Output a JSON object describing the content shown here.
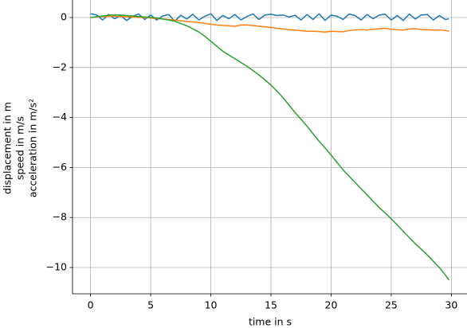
{
  "chart_data": {
    "type": "line",
    "xlabel": "time in s",
    "ylabel": [
      "displacement in m",
      "speed in m/s",
      "acceleration in m/s²"
    ],
    "x": [
      0,
      0.5,
      1,
      1.5,
      2,
      2.5,
      3,
      3.5,
      4,
      4.5,
      5,
      5.5,
      6,
      6.5,
      7,
      7.5,
      8,
      8.5,
      9,
      9.5,
      10,
      10.5,
      11,
      11.5,
      12,
      12.5,
      13,
      13.5,
      14,
      14.5,
      15,
      15.5,
      16,
      16.5,
      17,
      17.5,
      18,
      18.5,
      19,
      19.5,
      20,
      20.5,
      21,
      21.5,
      22,
      22.5,
      23,
      23.5,
      24,
      24.5,
      25,
      25.5,
      26,
      26.5,
      27,
      27.5,
      28,
      28.5,
      29,
      29.5,
      29.8
    ],
    "series": [
      {
        "color": "#1f77b4",
        "values": [
          0.15,
          0.1,
          -0.1,
          0.12,
          -0.05,
          0.08,
          -0.12,
          0.05,
          0.14,
          -0.08,
          0.1,
          -0.1,
          0.06,
          0.12,
          -0.15,
          0.09,
          -0.06,
          0.13,
          -0.1,
          0.05,
          0.15,
          -0.12,
          0.08,
          -0.05,
          0.12,
          -0.1,
          0.04,
          0.14,
          -0.08,
          0.1,
          0.13,
          0.08,
          0.1,
          0.02,
          0.09,
          -0.1,
          0.12,
          -0.08,
          0.15,
          -0.12,
          0.1,
          0.05,
          -0.08,
          0.14,
          0.08,
          -0.1,
          0.12,
          -0.05,
          0.1,
          0.13,
          -0.1,
          0.08,
          -0.12,
          0.14,
          -0.06,
          0.1,
          0.12,
          -0.1,
          0.08,
          -0.08,
          -0.05
        ]
      },
      {
        "color": "#ff7f0e",
        "values": [
          0,
          0.02,
          0.04,
          0.05,
          0.05,
          0.04,
          0.03,
          0.02,
          0.01,
          0,
          -0.02,
          -0.04,
          -0.06,
          -0.08,
          -0.1,
          -0.13,
          -0.16,
          -0.18,
          -0.2,
          -0.24,
          -0.27,
          -0.3,
          -0.32,
          -0.33,
          -0.35,
          -0.3,
          -0.3,
          -0.32,
          -0.35,
          -0.37,
          -0.4,
          -0.43,
          -0.46,
          -0.49,
          -0.5,
          -0.53,
          -0.55,
          -0.55,
          -0.56,
          -0.58,
          -0.55,
          -0.56,
          -0.57,
          -0.52,
          -0.5,
          -0.48,
          -0.5,
          -0.47,
          -0.45,
          -0.43,
          -0.47,
          -0.49,
          -0.5,
          -0.46,
          -0.45,
          -0.48,
          -0.49,
          -0.5,
          -0.5,
          -0.52,
          -0.55
        ]
      },
      {
        "color": "#2ca02c",
        "values": [
          0,
          0.03,
          0.06,
          0.09,
          0.1,
          0.1,
          0.08,
          0.06,
          0.04,
          0.02,
          0,
          -0.02,
          -0.06,
          -0.1,
          -0.15,
          -0.24,
          -0.33,
          -0.45,
          -0.58,
          -0.75,
          -0.95,
          -1.15,
          -1.35,
          -1.5,
          -1.65,
          -1.8,
          -1.95,
          -2.12,
          -2.3,
          -2.5,
          -2.7,
          -2.95,
          -3.2,
          -3.5,
          -3.8,
          -4.07,
          -4.35,
          -4.65,
          -4.95,
          -5.22,
          -5.5,
          -5.8,
          -6.1,
          -6.35,
          -6.6,
          -6.85,
          -7.1,
          -7.35,
          -7.6,
          -7.82,
          -8.05,
          -8.3,
          -8.55,
          -8.8,
          -9.05,
          -9.27,
          -9.5,
          -9.75,
          -10.0,
          -10.3,
          -10.5
        ]
      }
    ],
    "xlim": [
      -1.5,
      31.3
    ],
    "ylim": [
      -11.05,
      0.7
    ],
    "xticks": [
      0,
      5,
      10,
      15,
      20,
      25,
      30
    ],
    "yticks": [
      0,
      {
        "value": -2,
        "label": "−2"
      },
      {
        "value": -4,
        "label": "−4"
      },
      {
        "value": -6,
        "label": "−6"
      },
      {
        "value": -8,
        "label": "−8"
      },
      {
        "value": -10,
        "label": "−10"
      }
    ],
    "grid": true
  }
}
